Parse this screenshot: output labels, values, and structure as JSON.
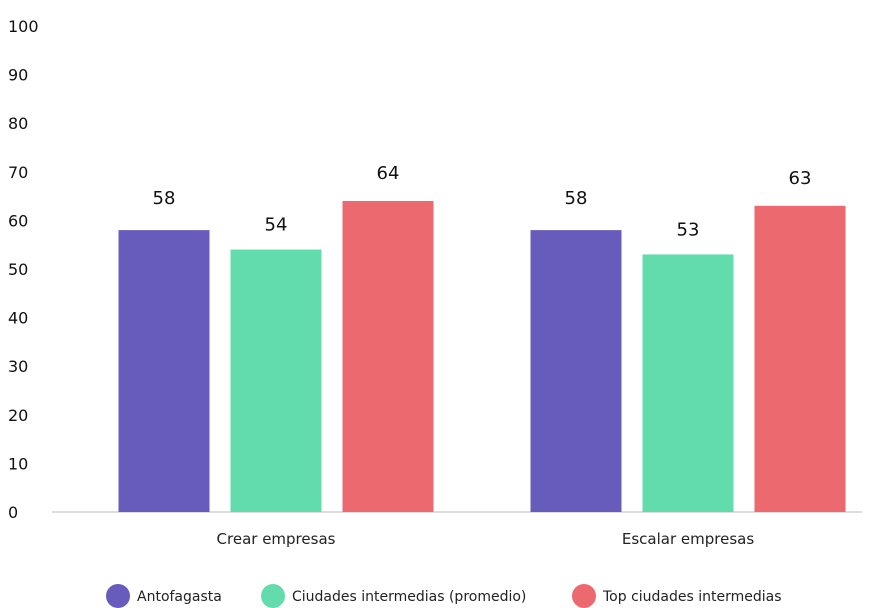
{
  "chart_data": {
    "type": "bar",
    "categories": [
      "Crear empresas",
      "Escalar empresas"
    ],
    "series": [
      {
        "name": "Antofagasta",
        "values": [
          58,
          58
        ],
        "color": "#675cbb"
      },
      {
        "name": "Ciudades intermedias (promedio)",
        "values": [
          54,
          53
        ],
        "color": "#62dcac"
      },
      {
        "name": "Top ciudades intermedias",
        "values": [
          64,
          63
        ],
        "color": "#ec6970"
      }
    ],
    "title": "",
    "xlabel": "",
    "ylabel": "",
    "ylim": [
      0,
      100
    ],
    "yticks": [
      0,
      10,
      20,
      30,
      40,
      50,
      60,
      70,
      80,
      90,
      100
    ],
    "grid": false,
    "legend_position": "bottom",
    "axis_color": "#bbbbbb"
  }
}
